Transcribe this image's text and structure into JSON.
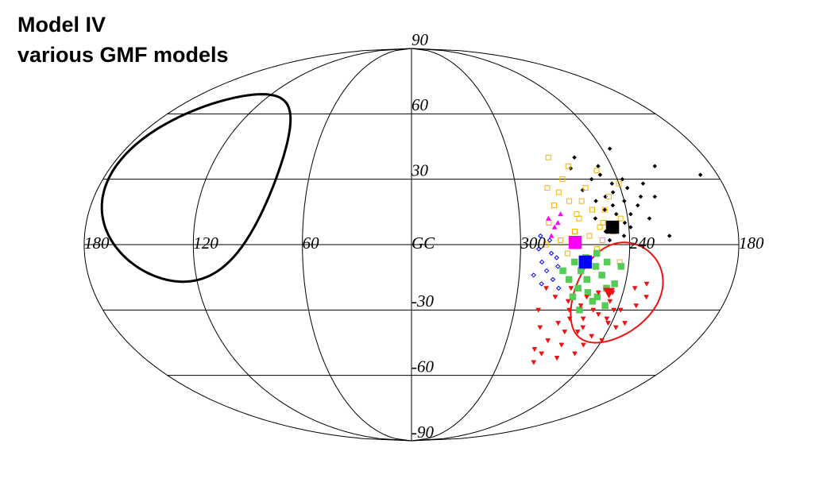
{
  "chart_data": {
    "type": "skymap",
    "title": "Model IV",
    "subtitle": "various GMF models",
    "xlim": [
      540,
      180
    ],
    "ylim": [
      -90,
      90
    ],
    "xticks": [
      {
        "value": 540,
        "label": "180"
      },
      {
        "value": 480,
        "label": "120"
      },
      {
        "value": 420,
        "label": "60"
      },
      {
        "value": 360,
        "label": "GC"
      },
      300,
      240,
      180
    ],
    "yticks": [
      90,
      60,
      30,
      -30,
      -60,
      -90
    ],
    "grid": true,
    "series": [
      {
        "color": "#000000",
        "marker": "diamond",
        "size": 3,
        "x": [
          262,
          255,
          250,
          247,
          244,
          240,
          238,
          236,
          258,
          252,
          249,
          245,
          242,
          239,
          233,
          230,
          228,
          226,
          265,
          260,
          256,
          253,
          248,
          243,
          237,
          214,
          190,
          222,
          218,
          235,
          246,
          251
        ],
        "values": [
          25,
          30,
          22,
          18,
          28,
          20,
          14,
          26,
          12,
          16,
          32,
          24,
          10,
          8,
          18,
          22,
          12,
          28,
          35,
          40,
          20,
          6,
          36,
          4,
          30,
          36,
          32,
          22,
          4,
          44,
          14,
          2
        ]
      },
      {
        "color": "#f5b400",
        "marker": "open-square",
        "size": 4,
        "x": [
          284,
          280,
          276,
          272,
          268,
          264,
          260,
          256,
          252,
          248,
          244,
          240,
          278,
          274,
          270,
          266,
          262,
          258,
          254,
          250,
          282,
          276,
          271,
          267,
          263,
          259,
          255,
          249,
          245,
          286
        ],
        "values": [
          10,
          18,
          24,
          30,
          14,
          20,
          26,
          8,
          16,
          22,
          12,
          28,
          2,
          -4,
          6,
          36,
          4,
          -2,
          10,
          34,
          26,
          40,
          20,
          12,
          -6,
          16,
          2,
          6,
          -8,
          0
        ]
      },
      {
        "color": "#0000ff",
        "marker": "open-diamond",
        "size": 3,
        "x": [
          290,
          288,
          285,
          283,
          281,
          279,
          292,
          287,
          284,
          280,
          277,
          289
        ],
        "values": [
          -2,
          -8,
          -12,
          -4,
          -16,
          -10,
          -14,
          -18,
          2,
          -6,
          -20,
          4
        ]
      },
      {
        "color": "#ff00ff",
        "marker": "triangle-up",
        "size": 4,
        "x": [
          284,
          281,
          277,
          283,
          279
        ],
        "values": [
          12,
          8,
          14,
          4,
          10
        ]
      },
      {
        "color": "#55cc55",
        "marker": "square",
        "size": 8,
        "x": [
          270,
          266,
          262,
          258,
          254,
          250,
          246,
          268,
          264,
          260,
          256,
          252,
          248,
          272,
          276,
          244,
          258,
          262,
          266,
          254
        ],
        "values": [
          -8,
          -12,
          -16,
          -10,
          -14,
          -20,
          -18,
          -24,
          -6,
          -22,
          -26,
          -8,
          -28,
          -16,
          -12,
          -10,
          -4,
          -30,
          -20,
          -24
        ]
      },
      {
        "color": "#ee1111",
        "marker": "triangle-down",
        "size": 4,
        "x": [
          286,
          282,
          278,
          274,
          270,
          266,
          262,
          258,
          254,
          250,
          246,
          242,
          238,
          234,
          230,
          226,
          280,
          276,
          272,
          268,
          264,
          260,
          256,
          252,
          248,
          244,
          240,
          236,
          284,
          270,
          262,
          254,
          246,
          266,
          258,
          250,
          242,
          274,
          232,
          228
        ],
        "values": [
          -30,
          -38,
          -24,
          -44,
          -20,
          -34,
          -28,
          -40,
          -22,
          -32,
          -26,
          -36,
          -30,
          -20,
          -28,
          -24,
          -48,
          -54,
          -36,
          -30,
          -46,
          -24,
          -38,
          -50,
          -42,
          -34,
          -44,
          -38,
          -20,
          -26,
          -52,
          -30,
          -22,
          -40,
          -34,
          -46,
          -30,
          -50,
          -36,
          -18
        ]
      },
      {
        "color": "#000000",
        "marker": "square",
        "size": 16,
        "x": [
          249
        ],
        "values": [
          8
        ]
      },
      {
        "color": "#ff00ff",
        "marker": "square",
        "size": 16,
        "x": [
          270
        ],
        "values": [
          1
        ]
      },
      {
        "color": "#0000ff",
        "marker": "square",
        "size": 16,
        "x": [
          264
        ],
        "values": [
          -8
        ]
      },
      {
        "color": "#ee1111",
        "marker": "triangle-down",
        "size": 14,
        "x": [
          248
        ],
        "values": [
          -22
        ]
      }
    ],
    "circles": [
      {
        "color": "#000000",
        "width": 3,
        "l": 488,
        "b": 26,
        "radius": 43
      },
      {
        "color": "#ee1111",
        "width": 2,
        "l": 243,
        "b": -22,
        "radius": 23
      }
    ]
  }
}
